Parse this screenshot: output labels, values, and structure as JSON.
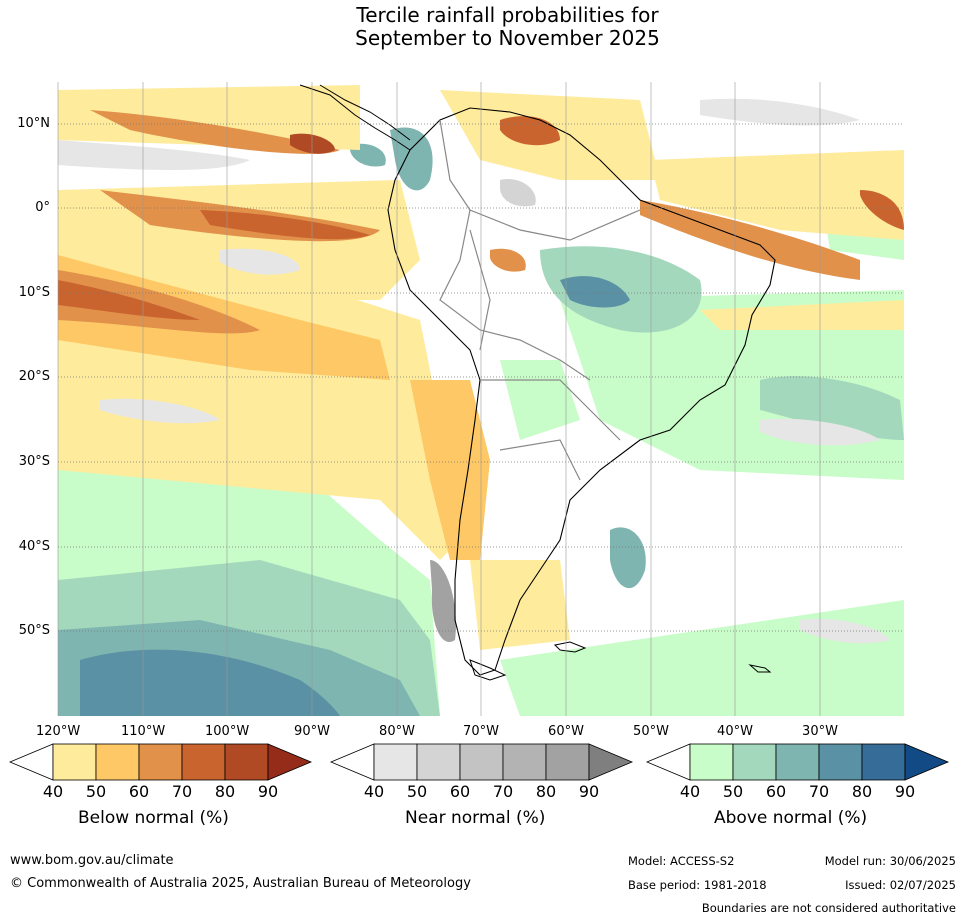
{
  "title_line1": "Tercile rainfall probabilities for",
  "title_line2": "September to November 2025",
  "lat_labels": [
    "10°N",
    "0°",
    "10°S",
    "20°S",
    "30°S",
    "40°S",
    "50°S"
  ],
  "lon_labels": [
    "120°W",
    "110°W",
    "100°W",
    "90°W",
    "80°W",
    "70°W",
    "60°W",
    "50°W",
    "40°W",
    "30°W"
  ],
  "legends": {
    "below": {
      "title": "Below normal (%)",
      "ticks": [
        "40",
        "50",
        "60",
        "70",
        "80",
        "90"
      ],
      "colors": [
        "#ffffff",
        "#ffeb9c",
        "#fdc865",
        "#e1914a",
        "#c9642f",
        "#b04a24",
        "#952c1a"
      ]
    },
    "near": {
      "title": "Near normal (%)",
      "ticks": [
        "40",
        "50",
        "60",
        "70",
        "80",
        "90"
      ],
      "colors": [
        "#ffffff",
        "#e6e6e6",
        "#d4d4d4",
        "#c3c3c3",
        "#b3b3b3",
        "#a2a2a2",
        "#7f7f7f"
      ]
    },
    "above": {
      "title": "Above normal (%)",
      "ticks": [
        "40",
        "50",
        "60",
        "70",
        "80",
        "90"
      ],
      "colors": [
        "#ffffff",
        "#c8fcc8",
        "#a4d8bc",
        "#7fb5b0",
        "#5a91a4",
        "#356c98",
        "#124a86"
      ]
    }
  },
  "footer": {
    "website": "www.bom.gov.au/climate",
    "copyright": "© Commonwealth of Australia 2025, Australian Bureau of Meteorology",
    "model": "Model: ACCESS-S2",
    "model_run": "Model run: 30/06/2025",
    "base_period": "Base period: 1981-2018",
    "issued": "Issued: 02/07/2025",
    "boundaries": "Boundaries are not considered authoritative"
  }
}
